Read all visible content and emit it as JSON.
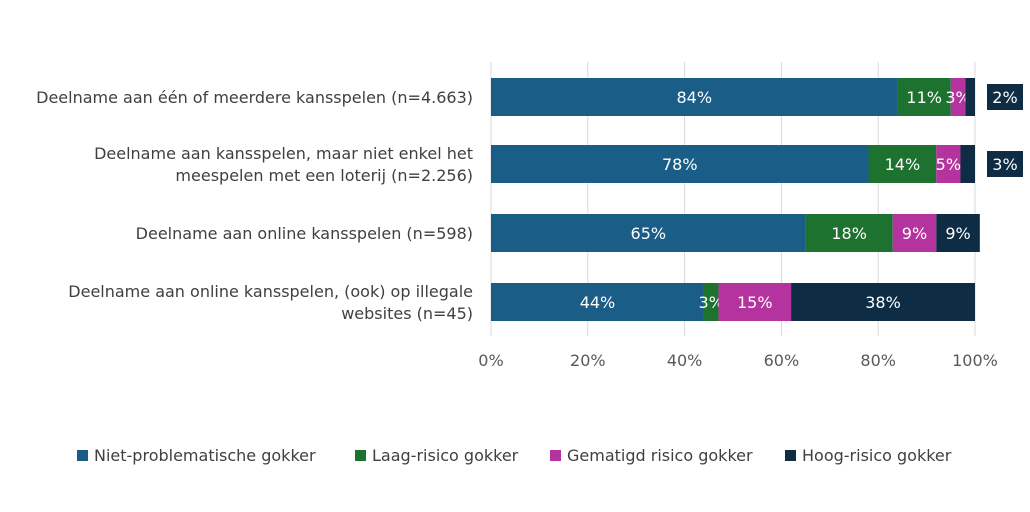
{
  "chart_data": {
    "type": "bar",
    "orientation": "horizontal",
    "stacked": true,
    "categories": [
      [
        "Deelname aan één of meerdere kansspelen (n=4.663)"
      ],
      [
        "Deelname aan kansspelen, maar niet enkel het",
        "meespelen met een loterij (n=2.256)"
      ],
      [
        "Deelname aan online kansspelen (n=598)"
      ],
      [
        "Deelname aan online kansspelen, (ook) op illegale",
        "websites (n=45)"
      ]
    ],
    "series": [
      {
        "name": "Niet-problematische gokker",
        "color": "#1a5e87",
        "values": [
          84,
          78,
          65,
          44
        ],
        "labels": [
          "84%",
          "78%",
          "65%",
          "44%"
        ]
      },
      {
        "name": "Laag-risico gokker",
        "color": "#1d7230",
        "values": [
          11,
          14,
          18,
          3
        ],
        "labels": [
          "11%",
          "14%",
          "18%",
          "3%"
        ]
      },
      {
        "name": "Gematigd risico gokker",
        "color": "#b5339e",
        "values": [
          3,
          5,
          9,
          15
        ],
        "labels": [
          "3%",
          "5%",
          "9%",
          "15%"
        ]
      },
      {
        "name": "Hoog-risico gokker",
        "color": "#0e2d44",
        "values": [
          2,
          3,
          9,
          38
        ],
        "labels": [
          "2%",
          "3%",
          "9%",
          "38%"
        ],
        "outside_label": [
          true,
          true,
          false,
          false
        ]
      }
    ],
    "xlim": [
      0,
      100
    ],
    "xticks": [
      0,
      20,
      40,
      60,
      80,
      100
    ],
    "xtick_labels": [
      "0%",
      "20%",
      "40%",
      "60%",
      "80%",
      "100%"
    ],
    "grid": "vertical",
    "legend": "bottom"
  }
}
